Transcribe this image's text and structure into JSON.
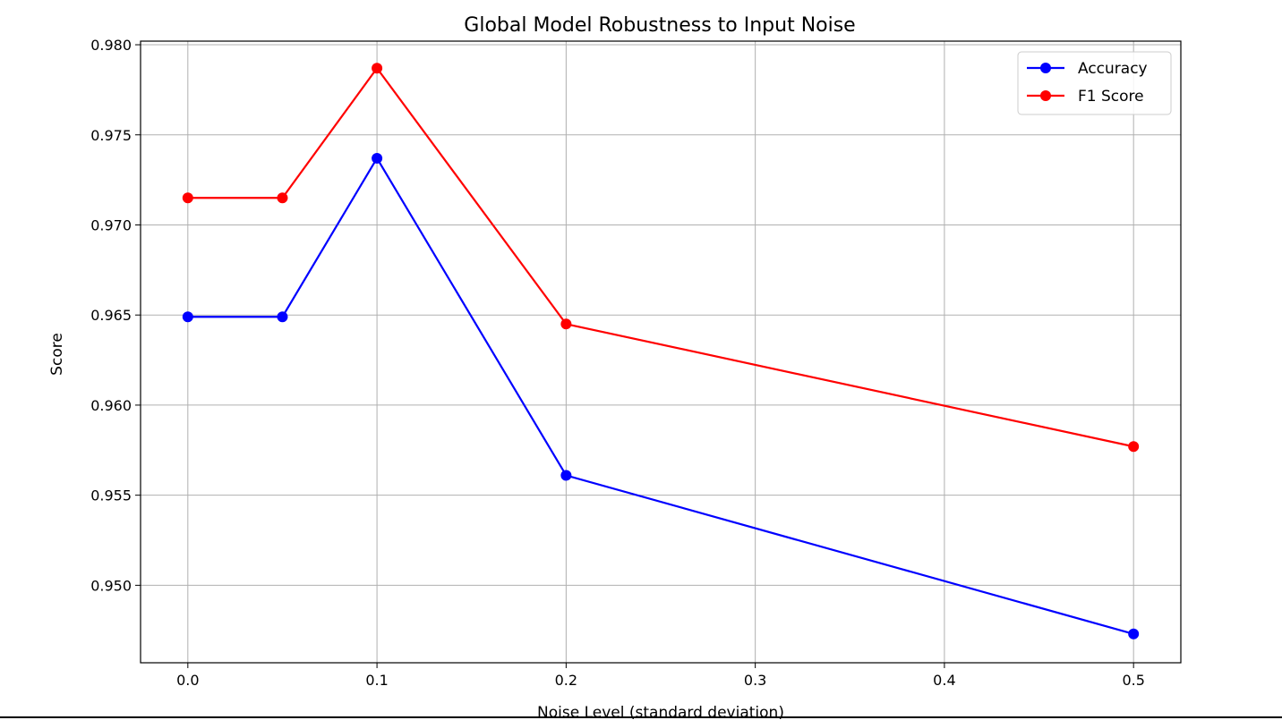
{
  "chart_data": {
    "type": "line",
    "title": "Global Model Robustness to Input Noise",
    "xlabel": "Noise Level (standard deviation)",
    "ylabel": "Score",
    "x": [
      0.0,
      0.05,
      0.1,
      0.2,
      0.5
    ],
    "xlim": [
      -0.025,
      0.525
    ],
    "ylim": [
      0.9457,
      0.9802
    ],
    "xticks": [
      0.0,
      0.1,
      0.2,
      0.3,
      0.4,
      0.5
    ],
    "xtick_labels": [
      "0.0",
      "0.1",
      "0.2",
      "0.3",
      "0.4",
      "0.5"
    ],
    "yticks": [
      0.95,
      0.955,
      0.96,
      0.965,
      0.97,
      0.975,
      0.98
    ],
    "ytick_labels": [
      "0.950",
      "0.955",
      "0.960",
      "0.965",
      "0.970",
      "0.975",
      "0.980"
    ],
    "grid": true,
    "legend_position": "top-right",
    "series": [
      {
        "name": "Accuracy",
        "color": "#0000ff",
        "marker": "circle",
        "values": [
          0.9649,
          0.9649,
          0.9737,
          0.9561,
          0.9473
        ]
      },
      {
        "name": "F1 Score",
        "color": "#ff0000",
        "marker": "circle",
        "values": [
          0.9715,
          0.9715,
          0.9787,
          0.9645,
          0.9577
        ]
      }
    ]
  }
}
